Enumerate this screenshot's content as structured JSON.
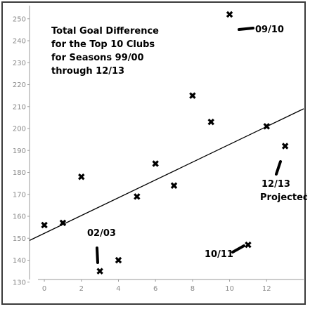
{
  "chart_data": {
    "type": "scatter",
    "title_lines": [
      "Total Goal Difference",
      "for the Top 10 Clubs",
      "for Seasons 99/00",
      "through 12/13"
    ],
    "xlabel": "",
    "ylabel": "",
    "xlim": [
      -0.8,
      14.0
    ],
    "ylim": [
      128,
      256
    ],
    "xticks": [
      0,
      2,
      4,
      6,
      8,
      10,
      12
    ],
    "yticks": [
      130,
      140,
      150,
      160,
      170,
      180,
      190,
      200,
      210,
      220,
      230,
      240,
      250
    ],
    "grid": false,
    "points": [
      {
        "x": 0,
        "y": 156
      },
      {
        "x": 1,
        "y": 157
      },
      {
        "x": 2,
        "y": 178
      },
      {
        "x": 3,
        "y": 135
      },
      {
        "x": 4,
        "y": 140
      },
      {
        "x": 5,
        "y": 169
      },
      {
        "x": 6,
        "y": 184
      },
      {
        "x": 7,
        "y": 174
      },
      {
        "x": 8,
        "y": 215
      },
      {
        "x": 9,
        "y": 203
      },
      {
        "x": 10,
        "y": 252
      },
      {
        "x": 11,
        "y": 147
      },
      {
        "x": 12,
        "y": 201
      },
      {
        "x": 13,
        "y": 192
      }
    ],
    "trendline": {
      "x": [
        -0.8,
        14.0
      ],
      "y": [
        149,
        209
      ]
    },
    "annotations": [
      {
        "id": "a-0910",
        "text": "09/10",
        "x": 10,
        "y": 252
      },
      {
        "id": "a-0203",
        "text": "02/03",
        "x": 3,
        "y": 135
      },
      {
        "id": "a-1011",
        "text": "10/11",
        "x": 11,
        "y": 147
      },
      {
        "id": "a-1213",
        "text": "12/13",
        "x": 13,
        "y": 192
      },
      {
        "id": "a-proj",
        "text": "Projected",
        "x": 13,
        "y": 192
      }
    ]
  }
}
